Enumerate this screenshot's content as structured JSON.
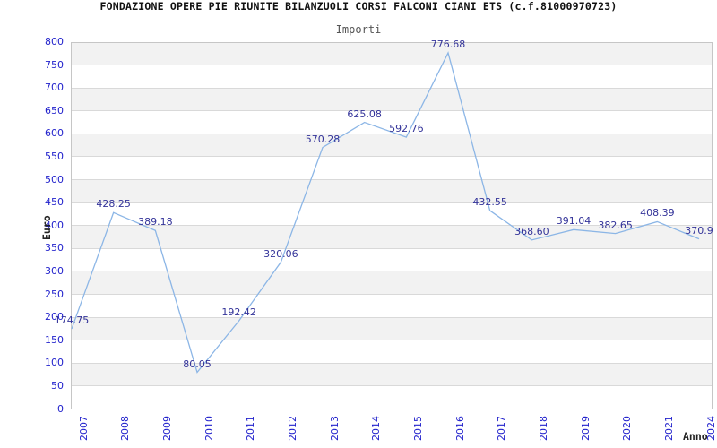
{
  "title": "FONDAZIONE OPERE PIE RIUNITE BILANZUOLI CORSI FALCONI CIANI ETS (c.f.81000970723)",
  "subtitle": "Importi",
  "chart_data": {
    "type": "line",
    "title": "FONDAZIONE OPERE PIE RIUNITE BILANZUOLI CORSI FALCONI CIANI ETS (c.f.81000970723)",
    "subtitle": "Importi",
    "xlabel": "Anno",
    "ylabel": "Euro",
    "categories": [
      "2007",
      "2008",
      "2009",
      "2010",
      "2011",
      "2012",
      "2013",
      "2014",
      "2015",
      "2016",
      "2017",
      "2018",
      "2019",
      "2020",
      "2021",
      "2024"
    ],
    "values": [
      174.75,
      428.25,
      389.18,
      80.05,
      192.42,
      320.06,
      570.28,
      625.08,
      592.76,
      776.68,
      432.55,
      368.6,
      391.04,
      382.65,
      408.39,
      370.9
    ],
    "value_labels": [
      "174.75",
      "428.25",
      "389.18",
      "80.05",
      "192.42",
      "320.06",
      "570.28",
      "625.08",
      "592.76",
      "776.68",
      "432.55",
      "368.60",
      "391.04",
      "382.65",
      "408.39",
      "370.9"
    ],
    "ylim": [
      0,
      800
    ],
    "ytick_step": 50,
    "grid": true,
    "legend": false,
    "band_fill_alternating": true,
    "colors": {
      "line": "#8cb6e6",
      "data_label": "#333399",
      "tick_label": "#2222cc",
      "band": "#f2f2f2",
      "gridline": "#d9d9d9",
      "plot_border": "#c6c6c6",
      "title": "#111111",
      "subtitle": "#555555",
      "axis_title": "#222222"
    }
  }
}
